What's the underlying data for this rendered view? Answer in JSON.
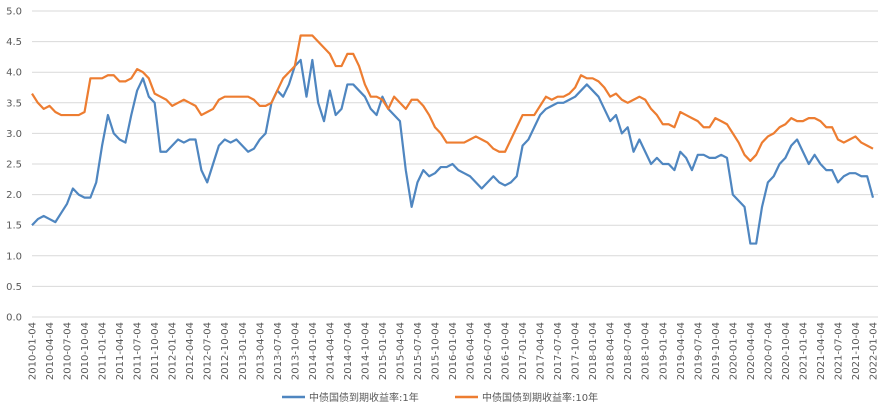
{
  "chart_data": {
    "type": "line",
    "categories": [
      "2010-01-04",
      null,
      null,
      "2010-04-04",
      null,
      null,
      "2010-07-04",
      null,
      null,
      "2010-10-04",
      null,
      null,
      "2011-01-04",
      null,
      null,
      "2011-04-04",
      null,
      null,
      "2011-07-04",
      null,
      null,
      "2011-10-04",
      null,
      null,
      "2012-01-04",
      null,
      null,
      "2012-04-04",
      null,
      null,
      "2012-07-04",
      null,
      null,
      "2012-10-04",
      null,
      null,
      "2013-01-04",
      null,
      null,
      "2013-04-04",
      null,
      null,
      "2013-07-04",
      null,
      null,
      "2013-10-04",
      null,
      null,
      "2014-01-04",
      null,
      null,
      "2014-04-04",
      null,
      null,
      "2014-07-04",
      null,
      null,
      "2014-10-04",
      null,
      null,
      "2015-01-04",
      null,
      null,
      "2015-04-04",
      null,
      null,
      "2015-07-04",
      null,
      null,
      "2015-10-04",
      null,
      null,
      "2016-01-04",
      null,
      null,
      "2016-04-04",
      null,
      null,
      "2016-07-04",
      null,
      null,
      "2016-10-04",
      null,
      null,
      "2017-01-04",
      null,
      null,
      "2017-04-04",
      null,
      null,
      "2017-07-04",
      null,
      null,
      "2017-10-04",
      null,
      null,
      "2018-01-04",
      null,
      null,
      "2018-04-04",
      null,
      null,
      "2018-07-04",
      null,
      null,
      "2018-10-04",
      null,
      null,
      "2019-01-04",
      null,
      null,
      "2019-04-04",
      null,
      null,
      "2019-07-04",
      null,
      null,
      "2019-10-04",
      null,
      null,
      "2020-01-04",
      null,
      null,
      "2020-04-04",
      null,
      null,
      "2020-07-04",
      null,
      null,
      "2020-10-04",
      null,
      null,
      "2021-01-04",
      null,
      null,
      "2021-04-04",
      null,
      null,
      "2021-07-04",
      null,
      null,
      "2021-10-04",
      null,
      null,
      "2022-01-04"
    ],
    "series": [
      {
        "name": "中债国债到期收益率:1年",
        "color": "#4f86c0",
        "values": [
          1.5,
          1.6,
          1.65,
          1.6,
          1.55,
          1.7,
          1.85,
          2.1,
          2.0,
          1.95,
          1.95,
          2.2,
          2.8,
          3.3,
          3.0,
          2.9,
          2.85,
          3.3,
          3.7,
          3.9,
          3.6,
          3.5,
          2.7,
          2.7,
          2.8,
          2.9,
          2.85,
          2.9,
          2.9,
          2.4,
          2.2,
          2.5,
          2.8,
          2.9,
          2.85,
          2.9,
          2.8,
          2.7,
          2.75,
          2.9,
          3.0,
          3.5,
          3.7,
          3.6,
          3.8,
          4.1,
          4.2,
          3.6,
          4.2,
          3.5,
          3.2,
          3.7,
          3.3,
          3.4,
          3.8,
          3.8,
          3.7,
          3.6,
          3.4,
          3.3,
          3.6,
          3.4,
          3.3,
          3.2,
          2.4,
          1.8,
          2.2,
          2.4,
          2.3,
          2.35,
          2.45,
          2.45,
          2.5,
          2.4,
          2.35,
          2.3,
          2.2,
          2.1,
          2.2,
          2.3,
          2.2,
          2.15,
          2.2,
          2.3,
          2.8,
          2.9,
          3.1,
          3.3,
          3.4,
          3.45,
          3.5,
          3.5,
          3.55,
          3.6,
          3.7,
          3.8,
          3.7,
          3.6,
          3.4,
          3.2,
          3.3,
          3.0,
          3.1,
          2.7,
          2.9,
          2.7,
          2.5,
          2.6,
          2.5,
          2.5,
          2.4,
          2.7,
          2.6,
          2.4,
          2.65,
          2.65,
          2.6,
          2.6,
          2.65,
          2.6,
          2.0,
          1.9,
          1.8,
          1.2,
          1.2,
          1.8,
          2.2,
          2.3,
          2.5,
          2.6,
          2.8,
          2.9,
          2.7,
          2.5,
          2.65,
          2.5,
          2.4,
          2.4,
          2.2,
          2.3,
          2.35,
          2.35,
          2.3,
          2.3,
          1.95
        ]
      },
      {
        "name": "中债国债到期收益率:10年",
        "color": "#ed7d31",
        "values": [
          3.65,
          3.5,
          3.4,
          3.45,
          3.35,
          3.3,
          3.3,
          3.3,
          3.3,
          3.35,
          3.9,
          3.9,
          3.9,
          3.95,
          3.95,
          3.85,
          3.85,
          3.9,
          4.05,
          4.0,
          3.9,
          3.65,
          3.6,
          3.55,
          3.45,
          3.5,
          3.55,
          3.5,
          3.45,
          3.3,
          3.35,
          3.4,
          3.55,
          3.6,
          3.6,
          3.6,
          3.6,
          3.6,
          3.55,
          3.45,
          3.45,
          3.5,
          3.7,
          3.9,
          4.0,
          4.1,
          4.6,
          4.6,
          4.6,
          4.5,
          4.4,
          4.3,
          4.1,
          4.1,
          4.3,
          4.3,
          4.1,
          3.8,
          3.6,
          3.6,
          3.55,
          3.4,
          3.6,
          3.5,
          3.4,
          3.55,
          3.55,
          3.45,
          3.3,
          3.1,
          3.0,
          2.85,
          2.85,
          2.85,
          2.85,
          2.9,
          2.95,
          2.9,
          2.85,
          2.75,
          2.7,
          2.7,
          2.9,
          3.1,
          3.3,
          3.3,
          3.3,
          3.45,
          3.6,
          3.55,
          3.6,
          3.6,
          3.65,
          3.75,
          3.95,
          3.9,
          3.9,
          3.85,
          3.75,
          3.6,
          3.65,
          3.55,
          3.5,
          3.55,
          3.6,
          3.55,
          3.4,
          3.3,
          3.15,
          3.15,
          3.1,
          3.35,
          3.3,
          3.25,
          3.2,
          3.1,
          3.1,
          3.25,
          3.2,
          3.15,
          3.0,
          2.85,
          2.65,
          2.55,
          2.65,
          2.85,
          2.95,
          3.0,
          3.1,
          3.15,
          3.25,
          3.2,
          3.2,
          3.25,
          3.25,
          3.2,
          3.1,
          3.1,
          2.9,
          2.85,
          2.9,
          2.95,
          2.85,
          2.8,
          2.75
        ]
      }
    ],
    "ylim": [
      0,
      5
    ],
    "yticks": [
      {
        "value": 0,
        "label": "0.0"
      },
      0.5,
      {
        "value": 1,
        "label": "1.0"
      },
      1.5,
      {
        "value": 2,
        "label": "2.0"
      },
      2.5,
      {
        "value": 3,
        "label": "3.0"
      },
      3.5,
      {
        "value": 4,
        "label": "4.0"
      },
      4.5,
      {
        "value": 5,
        "label": "5.0"
      }
    ],
    "grid": true
  }
}
